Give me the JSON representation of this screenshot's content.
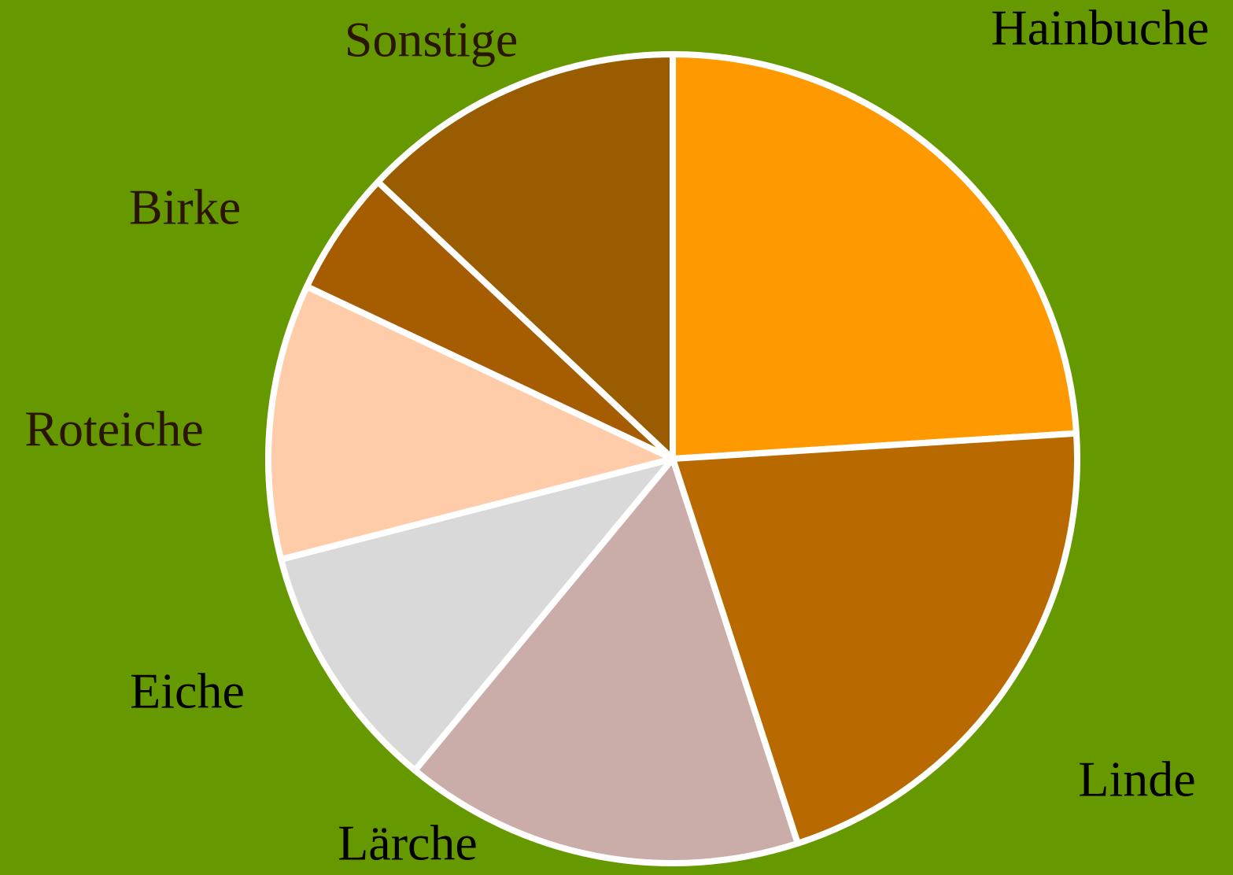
{
  "chart_data": {
    "type": "pie",
    "categories": [
      "Hainbuche",
      "Linde",
      "Lärche",
      "Eiche",
      "Roteiche",
      "Birke",
      "Sonstige"
    ],
    "values": [
      24,
      21,
      16,
      10,
      11,
      5,
      13
    ],
    "colors": [
      "#ff9900",
      "#b86a00",
      "#caaca9",
      "#d9d9d9",
      "#ffccaa",
      "#a65c00",
      "#995c00"
    ],
    "label_colors": [
      "#000000",
      "#000000",
      "#000000",
      "#000000",
      "#2b1400",
      "#2b1400",
      "#2b1400"
    ],
    "background": "#669900"
  }
}
